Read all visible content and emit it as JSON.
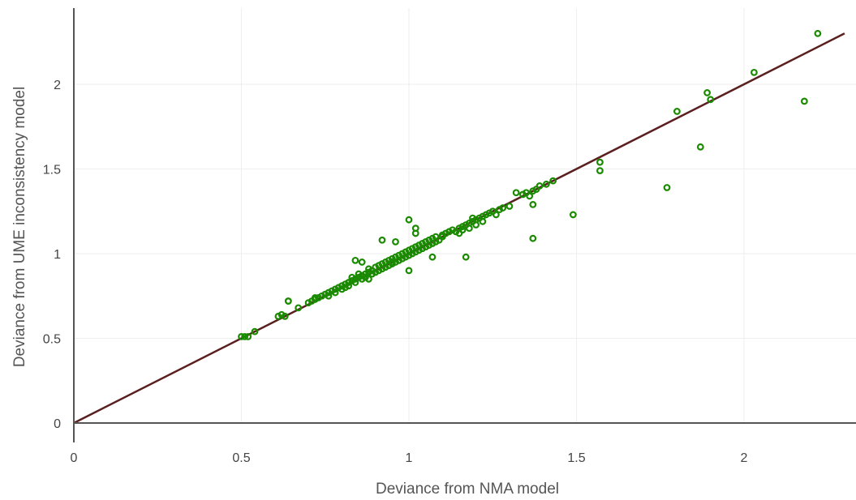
{
  "chart_data": {
    "type": "scatter",
    "xlabel": "Deviance from NMA model",
    "ylabel": "Deviance from UME inconsistency model",
    "xlim": [
      0,
      2.3
    ],
    "ylim": [
      0,
      2.3
    ],
    "x_ticks": [
      0,
      0.5,
      1,
      1.5,
      2
    ],
    "x_tick_labels": [
      "0",
      "0.5",
      "1",
      "1.5",
      "2"
    ],
    "y_ticks": [
      0,
      0.5,
      1,
      1.5,
      2
    ],
    "y_tick_labels": [
      "0",
      "0.5",
      "1",
      "1.5",
      "2"
    ],
    "grid": true,
    "legend": "none",
    "colors": {
      "points": "#1a8a00",
      "line": "#5a1f1f",
      "axis": "#555555",
      "grid": "#eeeeee"
    },
    "reference_line": {
      "x": [
        0,
        2.3
      ],
      "y": [
        0,
        2.3
      ]
    },
    "series": [
      {
        "x": [
          0.5,
          0.51,
          0.52,
          0.54,
          0.61,
          0.62,
          0.63,
          0.64,
          0.67,
          0.7,
          0.71,
          0.72,
          0.72,
          0.73,
          0.74,
          0.75,
          0.76,
          0.76,
          0.77,
          0.78,
          0.78,
          0.79,
          0.8,
          0.8,
          0.81,
          0.81,
          0.82,
          0.82,
          0.83,
          0.83,
          0.84,
          0.84,
          0.85,
          0.85,
          0.86,
          0.86,
          0.87,
          0.87,
          0.88,
          0.88,
          0.89,
          0.89,
          0.9,
          0.9,
          0.91,
          0.91,
          0.92,
          0.92,
          0.93,
          0.93,
          0.94,
          0.94,
          0.95,
          0.95,
          0.96,
          0.96,
          0.97,
          0.97,
          0.98,
          0.98,
          0.99,
          0.99,
          1.0,
          1.0,
          1.01,
          1.01,
          1.02,
          1.02,
          1.03,
          1.03,
          1.04,
          1.04,
          1.05,
          1.05,
          1.06,
          1.06,
          1.07,
          1.07,
          1.08,
          1.08,
          1.09,
          1.1,
          1.11,
          1.12,
          1.13,
          1.14,
          1.15,
          1.15,
          1.16,
          1.16,
          1.17,
          1.18,
          1.18,
          1.19,
          1.2,
          1.2,
          1.21,
          1.22,
          1.22,
          1.23,
          1.24,
          1.25,
          1.26,
          1.27,
          1.28,
          1.3,
          1.32,
          1.34,
          1.35,
          1.36,
          1.37,
          1.38,
          1.39,
          1.41,
          1.43,
          0.84,
          0.86,
          0.92,
          0.96,
          1.0,
          1.02,
          1.02,
          1.07,
          1.17,
          1.0,
          1.37,
          1.37,
          1.49,
          1.57,
          1.57,
          1.77,
          1.8,
          1.87,
          1.89,
          1.9,
          2.03,
          2.18,
          2.22,
          0.64,
          0.88,
          0.95,
          1.1,
          1.19,
          1.25
        ],
        "y": [
          0.51,
          0.51,
          0.51,
          0.54,
          0.63,
          0.64,
          0.63,
          0.72,
          0.68,
          0.71,
          0.72,
          0.73,
          0.74,
          0.74,
          0.75,
          0.76,
          0.75,
          0.77,
          0.78,
          0.77,
          0.79,
          0.8,
          0.79,
          0.81,
          0.82,
          0.8,
          0.83,
          0.81,
          0.84,
          0.86,
          0.83,
          0.85,
          0.86,
          0.88,
          0.85,
          0.87,
          0.88,
          0.86,
          0.89,
          0.91,
          0.88,
          0.9,
          0.89,
          0.92,
          0.9,
          0.93,
          0.91,
          0.94,
          0.92,
          0.95,
          0.93,
          0.96,
          0.94,
          0.97,
          0.95,
          0.98,
          0.96,
          0.99,
          0.97,
          1.0,
          0.98,
          1.01,
          0.99,
          1.02,
          1.0,
          1.03,
          1.01,
          1.04,
          1.02,
          1.05,
          1.03,
          1.06,
          1.04,
          1.07,
          1.05,
          1.08,
          1.06,
          1.09,
          1.07,
          1.1,
          1.08,
          1.11,
          1.12,
          1.13,
          1.14,
          1.13,
          1.15,
          1.12,
          1.16,
          1.14,
          1.17,
          1.18,
          1.15,
          1.19,
          1.2,
          1.17,
          1.21,
          1.22,
          1.19,
          1.23,
          1.24,
          1.25,
          1.23,
          1.26,
          1.27,
          1.28,
          1.36,
          1.35,
          1.36,
          1.34,
          1.37,
          1.38,
          1.4,
          1.41,
          1.43,
          0.96,
          0.95,
          1.08,
          1.07,
          1.2,
          1.15,
          1.12,
          0.98,
          0.98,
          0.9,
          1.29,
          1.09,
          1.23,
          1.49,
          1.54,
          1.39,
          1.84,
          1.63,
          1.95,
          1.91,
          2.07,
          1.9,
          2.3,
          0.72,
          0.85,
          0.95,
          1.1,
          1.21,
          1.25
        ]
      }
    ]
  }
}
